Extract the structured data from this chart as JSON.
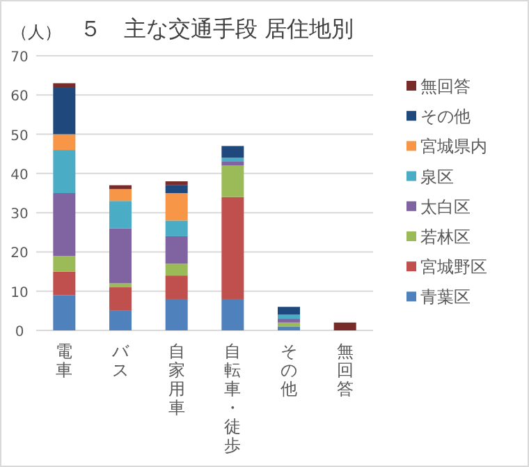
{
  "chart_data": {
    "type": "bar",
    "stacked": true,
    "title": "５　主な交通手段 居住地別",
    "ylabel": "（人）",
    "categories": [
      "電車",
      "バス",
      "自家用車",
      "自転車・徒歩",
      "その他",
      "無回答"
    ],
    "series": [
      {
        "name": "青葉区",
        "color": "#4f81bd",
        "values": [
          9,
          5,
          8,
          8,
          1,
          0
        ]
      },
      {
        "name": "宮城野区",
        "color": "#c0504d",
        "values": [
          6,
          6,
          6,
          26,
          0,
          0
        ]
      },
      {
        "name": "若林区",
        "color": "#9bbb59",
        "values": [
          4,
          1,
          3,
          8,
          1,
          0
        ]
      },
      {
        "name": "太白区",
        "color": "#8064a2",
        "values": [
          16,
          14,
          7,
          1,
          1,
          0
        ]
      },
      {
        "name": "泉区",
        "color": "#4bacc6",
        "values": [
          11,
          7,
          4,
          1,
          1,
          0
        ]
      },
      {
        "name": "宮城県内",
        "color": "#f79646",
        "values": [
          4,
          3,
          7,
          0,
          0,
          0
        ]
      },
      {
        "name": "その他",
        "color": "#1f497d",
        "values": [
          12,
          0,
          2,
          3,
          2,
          0
        ]
      },
      {
        "name": "無回答",
        "color": "#772c2a",
        "values": [
          1,
          1,
          1,
          0,
          0,
          2
        ]
      }
    ],
    "ylim": [
      0,
      70
    ],
    "yticks": [
      0,
      10,
      20,
      30,
      40,
      50,
      60,
      70
    ],
    "grid": "y",
    "legend": "right"
  }
}
